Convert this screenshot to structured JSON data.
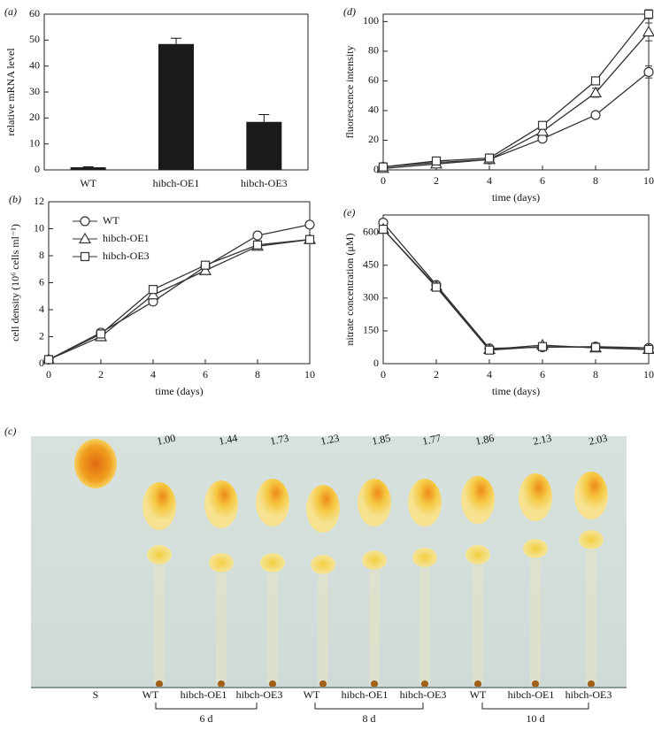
{
  "chart_data": [
    {
      "type": "bar",
      "panel": "(a)",
      "ylabel": "relative mRNA level",
      "categories": [
        "WT",
        "hibch-OE1",
        "hibch-OE3"
      ],
      "values": [
        1,
        48.5,
        18.5
      ],
      "errors": [
        0.2,
        2.2,
        2.8
      ],
      "color": "#1a1a1a",
      "ylim": [
        0,
        60
      ],
      "yticks": [
        0,
        10,
        20,
        30,
        40,
        50,
        60
      ]
    },
    {
      "type": "line",
      "panel": "(b)",
      "ylabel": "cell density (10⁶ cells ml⁻¹)",
      "xlabel": "time (days)",
      "x": [
        0,
        2,
        4,
        6,
        8,
        10
      ],
      "xlim": [
        0,
        10
      ],
      "xticks": [
        0,
        2,
        4,
        6,
        8,
        10
      ],
      "ylim": [
        0,
        12
      ],
      "yticks": [
        0,
        2,
        4,
        6,
        8,
        10,
        12
      ],
      "legend": "upper left",
      "series": [
        {
          "name": "WT",
          "marker": "circle",
          "color": "#333333",
          "values": [
            0.3,
            2.3,
            4.6,
            7.2,
            9.5,
            10.3
          ]
        },
        {
          "name": "hibch-OE1",
          "marker": "triangle",
          "color": "#333333",
          "values": [
            0.3,
            2.0,
            5.1,
            6.9,
            8.7,
            9.2
          ]
        },
        {
          "name": "hibch-OE3",
          "marker": "square",
          "color": "#333333",
          "values": [
            0.3,
            2.2,
            5.5,
            7.3,
            8.8,
            9.2
          ]
        }
      ]
    },
    {
      "type": "line",
      "panel": "(d)",
      "ylabel": "fluorescence intensity",
      "xlabel": "time (days)",
      "x": [
        0,
        2,
        4,
        6,
        8,
        10
      ],
      "xlim": [
        0,
        10
      ],
      "xticks": [
        0,
        2,
        4,
        6,
        8,
        10
      ],
      "ylim": [
        0,
        105
      ],
      "yticks": [
        0,
        20,
        40,
        60,
        80,
        100
      ],
      "series": [
        {
          "marker": "circle",
          "color": "#333333",
          "values": [
            2,
            5,
            7,
            21,
            37,
            66
          ],
          "errors": [
            0.5,
            0.8,
            1,
            1.5,
            2,
            4
          ]
        },
        {
          "marker": "triangle",
          "color": "#333333",
          "values": [
            1,
            4,
            7,
            26,
            52,
            93
          ],
          "errors": [
            0.5,
            0.8,
            1,
            2,
            3,
            6
          ]
        },
        {
          "marker": "square",
          "color": "#333333",
          "values": [
            2,
            6,
            8,
            30,
            60,
            105
          ],
          "errors": [
            0.5,
            0.8,
            1,
            1.5,
            2,
            3
          ]
        }
      ]
    },
    {
      "type": "line",
      "panel": "(e)",
      "ylabel": "nitrate concentration (μM)",
      "xlabel": "time (days)",
      "x": [
        0,
        2,
        4,
        6,
        8,
        10
      ],
      "xlim": [
        0,
        10
      ],
      "xticks": [
        0,
        2,
        4,
        6,
        8,
        10
      ],
      "ylim": [
        0,
        680
      ],
      "yticks": [
        0,
        150,
        300,
        450,
        600
      ],
      "series": [
        {
          "marker": "circle",
          "color": "#333333",
          "values": [
            645,
            360,
            70,
            75,
            78,
            72
          ]
        },
        {
          "marker": "triangle",
          "color": "#333333",
          "values": [
            615,
            355,
            65,
            85,
            72,
            65
          ]
        },
        {
          "marker": "square",
          "color": "#333333",
          "values": [
            615,
            350,
            62,
            78,
            75,
            65
          ]
        }
      ]
    }
  ],
  "image_panel": {
    "panel": "(c)",
    "ratios": [
      "1.00",
      "1.44",
      "1.73",
      "1.23",
      "1.85",
      "1.77",
      "1.86",
      "2.13",
      "2.03"
    ],
    "lanes": [
      "S",
      "WT",
      "hibch-OE1",
      "hibch-OE3",
      "WT",
      "hibch-OE1",
      "hibch-OE3",
      "WT",
      "hibch-OE1",
      "hibch-OE3"
    ],
    "groups": [
      "6 d",
      "8 d",
      "10 d"
    ]
  }
}
